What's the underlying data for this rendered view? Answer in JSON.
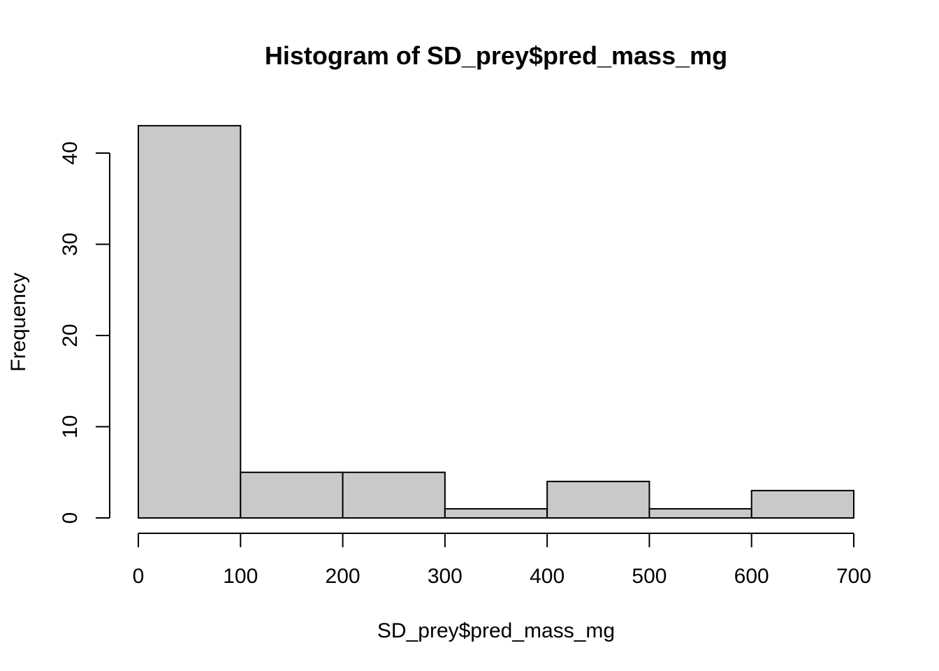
{
  "chart_data": {
    "type": "bar",
    "subtype": "histogram",
    "title": "Histogram of SD_prey$pred_mass_mg",
    "xlabel": "SD_prey$pred_mass_mg",
    "ylabel": "Frequency",
    "bins": [
      {
        "from": 0,
        "to": 100,
        "count": 43
      },
      {
        "from": 100,
        "to": 200,
        "count": 5
      },
      {
        "from": 200,
        "to": 300,
        "count": 5
      },
      {
        "from": 300,
        "to": 400,
        "count": 1
      },
      {
        "from": 400,
        "to": 500,
        "count": 4
      },
      {
        "from": 500,
        "to": 600,
        "count": 1
      },
      {
        "from": 600,
        "to": 700,
        "count": 3
      }
    ],
    "xlim": [
      0,
      700
    ],
    "ylim": [
      0,
      43
    ],
    "x_ticks": [
      0,
      100,
      200,
      300,
      400,
      500,
      600,
      700
    ],
    "x_tick_labels": [
      "0",
      "100",
      "200",
      "300",
      "400",
      "500",
      "600",
      "700"
    ],
    "y_ticks": [
      0,
      10,
      20,
      30,
      40
    ],
    "y_tick_labels": [
      "0",
      "10",
      "20",
      "30",
      "40"
    ],
    "grid": false,
    "legend": "none",
    "colors": {
      "bar_fill": "#c9c9c9",
      "bar_stroke": "#000000",
      "background": "#ffffff"
    }
  }
}
